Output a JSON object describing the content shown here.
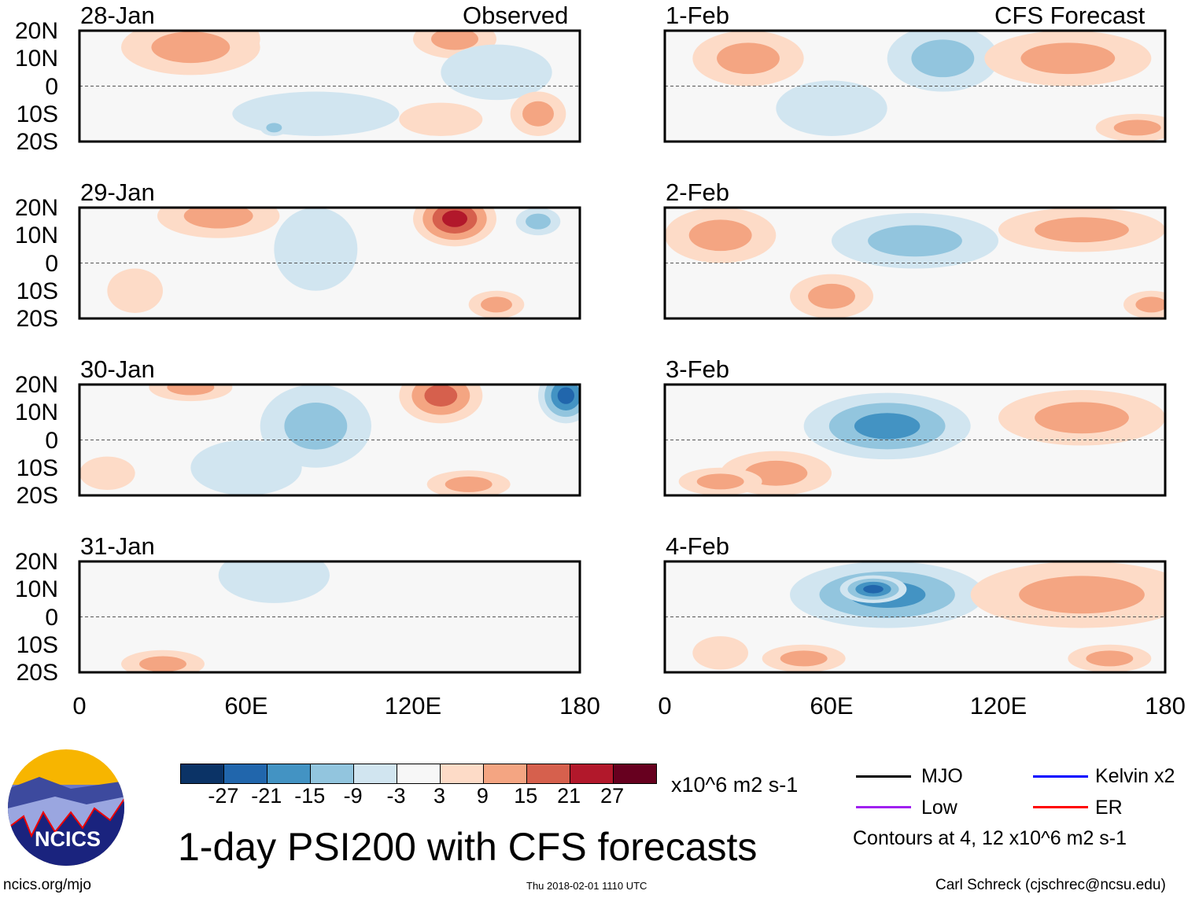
{
  "panels_left_header": "Observed",
  "panels_right_header": "CFS Forecast",
  "lat_ticks": [
    "20N",
    "10N",
    "0",
    "10S",
    "20S"
  ],
  "lon_ticks": [
    "0",
    "60E",
    "120E",
    "180"
  ],
  "panels": [
    {
      "date": "28-Jan",
      "column": "left",
      "row": 0,
      "features": [
        [
          50,
          17,
          15,
          9,
          15
        ],
        [
          40,
          14,
          25,
          10,
          9
        ],
        [
          135,
          17,
          15,
          7,
          9
        ],
        [
          85,
          -10,
          30,
          8,
          -3
        ],
        [
          70,
          -15,
          5,
          3,
          -9
        ],
        [
          150,
          5,
          20,
          10,
          -3
        ],
        [
          165,
          -10,
          10,
          8,
          9
        ],
        [
          130,
          -12,
          15,
          6,
          3
        ]
      ]
    },
    {
      "date": "29-Jan",
      "column": "left",
      "row": 1,
      "features": [
        [
          50,
          17,
          22,
          8,
          9
        ],
        [
          135,
          16,
          15,
          10,
          21
        ],
        [
          165,
          15,
          8,
          5,
          -9
        ],
        [
          85,
          5,
          15,
          15,
          -3
        ],
        [
          150,
          -15,
          10,
          5,
          9
        ],
        [
          20,
          -10,
          10,
          8,
          3
        ]
      ]
    },
    {
      "date": "30-Jan",
      "column": "left",
      "row": 2,
      "features": [
        [
          130,
          16,
          15,
          10,
          15
        ],
        [
          175,
          16,
          10,
          10,
          -21
        ],
        [
          85,
          5,
          20,
          15,
          -9
        ],
        [
          40,
          19,
          15,
          5,
          9
        ],
        [
          60,
          -10,
          20,
          10,
          -3
        ],
        [
          140,
          -16,
          15,
          5,
          9
        ],
        [
          10,
          -12,
          10,
          6,
          3
        ]
      ]
    },
    {
      "date": "31-Jan",
      "column": "left",
      "row": 3,
      "features": [
        [
          70,
          15,
          20,
          10,
          -3
        ],
        [
          30,
          -17,
          15,
          5,
          9
        ]
      ]
    },
    {
      "date": "1-Feb",
      "column": "right",
      "row": 0,
      "features": [
        [
          100,
          10,
          20,
          12,
          -9
        ],
        [
          30,
          10,
          20,
          10,
          9
        ],
        [
          145,
          10,
          30,
          10,
          9
        ],
        [
          170,
          -15,
          15,
          5,
          9
        ],
        [
          60,
          -8,
          20,
          10,
          -3
        ]
      ]
    },
    {
      "date": "2-Feb",
      "column": "right",
      "row": 1,
      "features": [
        [
          20,
          10,
          20,
          10,
          9
        ],
        [
          90,
          8,
          30,
          10,
          -9
        ],
        [
          150,
          12,
          30,
          8,
          9
        ],
        [
          60,
          -12,
          15,
          8,
          9
        ],
        [
          175,
          -15,
          10,
          5,
          9
        ]
      ]
    },
    {
      "date": "3-Feb",
      "column": "right",
      "row": 2,
      "features": [
        [
          80,
          5,
          30,
          12,
          -15
        ],
        [
          40,
          -12,
          20,
          8,
          9
        ],
        [
          150,
          8,
          30,
          10,
          9
        ],
        [
          20,
          -15,
          15,
          5,
          9
        ]
      ]
    },
    {
      "date": "4-Feb",
      "column": "right",
      "row": 3,
      "features": [
        [
          80,
          8,
          35,
          12,
          -15
        ],
        [
          75,
          10,
          12,
          5,
          -21
        ],
        [
          150,
          8,
          40,
          12,
          9
        ],
        [
          50,
          -15,
          15,
          5,
          9
        ],
        [
          160,
          -15,
          15,
          5,
          9
        ],
        [
          20,
          -13,
          10,
          6,
          3
        ]
      ]
    }
  ],
  "colorbar": {
    "colors": [
      "#0b3366",
      "#2166ac",
      "#4393c3",
      "#92c5de",
      "#d1e5f0",
      "#f7f7f7",
      "#fddbc7",
      "#f4a582",
      "#d6604d",
      "#b2182b",
      "#67001f"
    ],
    "levels": [
      -27,
      -21,
      -15,
      -9,
      -3,
      3,
      9,
      15,
      21,
      27
    ],
    "labels": [
      "-27",
      "-21",
      "-15",
      "-9",
      "-3",
      "3",
      "9",
      "15",
      "21",
      "27"
    ],
    "units": "x10^6 m2 s-1"
  },
  "legend": {
    "items": [
      {
        "label": "MJO",
        "color": "#000000"
      },
      {
        "label": "Kelvin x2",
        "color": "#0000ff"
      },
      {
        "label": "Low",
        "color": "#a020f0"
      },
      {
        "label": "ER",
        "color": "#ff0000"
      }
    ],
    "contours_note": "Contours at 4, 12 x10^6 m2 s-1"
  },
  "title": "1-day PSI200 with CFS forecasts",
  "logo_text": "NCICS",
  "footer": {
    "url": "ncics.org/mjo",
    "timestamp": "Thu 2018-02-01 1110 UTC",
    "author": "Carl Schreck (cjschrec@ncsu.edu)"
  }
}
